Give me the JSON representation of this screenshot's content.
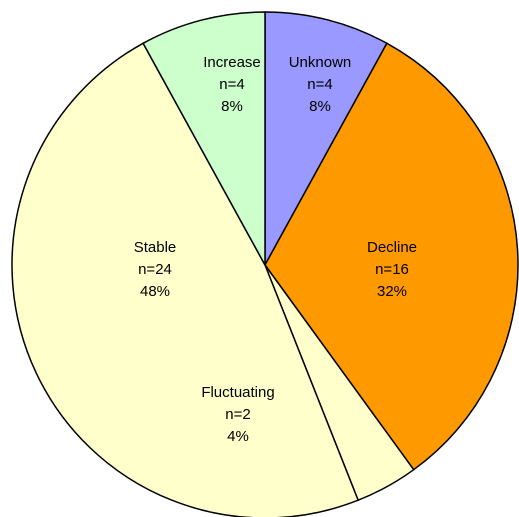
{
  "chart_data": {
    "type": "pie",
    "categories": [
      "Unknown",
      "Decline",
      "Fluctuating",
      "Stable",
      "Increase"
    ],
    "values": [
      8,
      32,
      4,
      48,
      8
    ],
    "value_labels": [
      "8%",
      "32%",
      "4%",
      "48%",
      "8%"
    ],
    "count_labels": [
      "n=4",
      "n=16",
      "n=2",
      "n=24",
      "n=4"
    ],
    "colors": [
      "#9999ff",
      "#ff9900",
      "#ffffcc",
      "#ffffcc",
      "#ccffcc"
    ]
  }
}
